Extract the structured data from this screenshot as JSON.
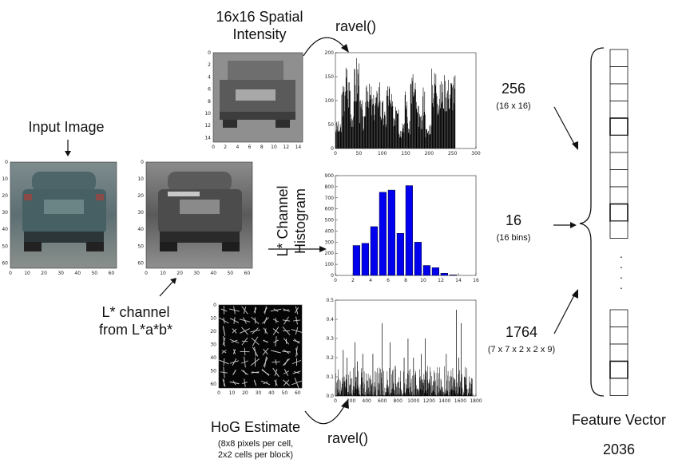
{
  "input": {
    "title": "Input Image",
    "xticks": [
      "0",
      "10",
      "20",
      "30",
      "40",
      "50",
      "60"
    ],
    "yticks": [
      "0",
      "10",
      "20",
      "30",
      "40",
      "50",
      "60"
    ]
  },
  "lchannel": {
    "caption_line1": "L* channel",
    "caption_line2": "from L*a*b*",
    "xticks": [
      "0",
      "10",
      "20",
      "30",
      "40",
      "50",
      "60"
    ],
    "yticks": [
      "0",
      "10",
      "20",
      "30",
      "40",
      "50",
      "60"
    ]
  },
  "spatial": {
    "title_line1": "16x16 Spatial",
    "title_line2": "Intensity",
    "xticks": [
      "0",
      "2",
      "4",
      "6",
      "8",
      "10",
      "12",
      "14"
    ],
    "yticks": [
      "0",
      "2",
      "4",
      "6",
      "8",
      "10",
      "12",
      "14"
    ]
  },
  "hog": {
    "title": "HoG Estimate",
    "note_line1": "(8x8 pixels per cell,",
    "note_line2": "2x2 cells per block)",
    "xticks": [
      "0",
      "10",
      "20",
      "30",
      "40",
      "50",
      "60"
    ],
    "yticks": [
      "0",
      "10",
      "20",
      "30",
      "40",
      "50",
      "60"
    ]
  },
  "ravel_top": "ravel()",
  "ravel_bottom": "ravel()",
  "histogram_label_line1": "L* Channel",
  "histogram_label_line2": "Histogram",
  "counts": {
    "spatial": {
      "value": "256",
      "formula": "(16 x 16)"
    },
    "histogram": {
      "value": "16",
      "formula": "(16 bins)"
    },
    "hog": {
      "value": "1764",
      "formula": "(7 x 7 x 2 x 2 x 9)"
    }
  },
  "vector": {
    "title": "Feature Vector",
    "total": "2036",
    "dots": "·\n·\n·\n·"
  },
  "chart_data": [
    {
      "type": "bar",
      "name": "spatial-ravel",
      "x_range": [
        0,
        300
      ],
      "ylim": [
        0,
        200
      ],
      "xticks": [
        "0",
        "50",
        "100",
        "150",
        "200",
        "250",
        "300"
      ],
      "yticks": [
        "0",
        "50",
        "100",
        "150",
        "200"
      ],
      "approx_profile": [
        50,
        45,
        120,
        160,
        140,
        80,
        150,
        175,
        90,
        60,
        150,
        120,
        100,
        110,
        140,
        90,
        70,
        130,
        100,
        80,
        120,
        40,
        60,
        110,
        50,
        150,
        130,
        80,
        60,
        120,
        40,
        50,
        150,
        160,
        120,
        130,
        140,
        135,
        138,
        140
      ]
    },
    {
      "type": "bar",
      "name": "l-channel-histogram",
      "x_range": [
        0,
        16
      ],
      "ylim": [
        0,
        900
      ],
      "xticks": [
        "0",
        "2",
        "4",
        "6",
        "8",
        "10",
        "12",
        "14",
        "16"
      ],
      "yticks": [
        "0",
        "100",
        "200",
        "300",
        "400",
        "500",
        "600",
        "700",
        "800",
        "900"
      ],
      "bin_left": [
        2,
        3,
        4,
        5,
        6,
        7,
        8,
        9,
        10,
        11,
        12,
        13
      ],
      "values": [
        270,
        290,
        440,
        750,
        770,
        380,
        810,
        300,
        90,
        70,
        20,
        5
      ],
      "color": "#0000ee"
    },
    {
      "type": "bar",
      "name": "hog-ravel",
      "x_range": [
        0,
        1800
      ],
      "ylim": [
        0,
        0.5
      ],
      "xticks": [
        "0",
        "200",
        "400",
        "600",
        "800",
        "1000",
        "1200",
        "1400",
        "1600",
        "1800"
      ],
      "yticks": [
        "0.0",
        "0.1",
        "0.2",
        "0.3",
        "0.4",
        "0.5"
      ],
      "peak_positions": [
        100,
        150,
        250,
        280,
        350,
        480,
        600,
        700,
        880,
        930,
        1000,
        1100,
        1150,
        1300,
        1420,
        1550,
        1580,
        1610,
        1650
      ],
      "peak_values": [
        0.24,
        0.2,
        0.28,
        0.18,
        0.22,
        0.22,
        0.38,
        0.28,
        0.2,
        0.3,
        0.2,
        0.22,
        0.3,
        0.12,
        0.22,
        0.45,
        0.2,
        0.38,
        0.1
      ]
    }
  ]
}
